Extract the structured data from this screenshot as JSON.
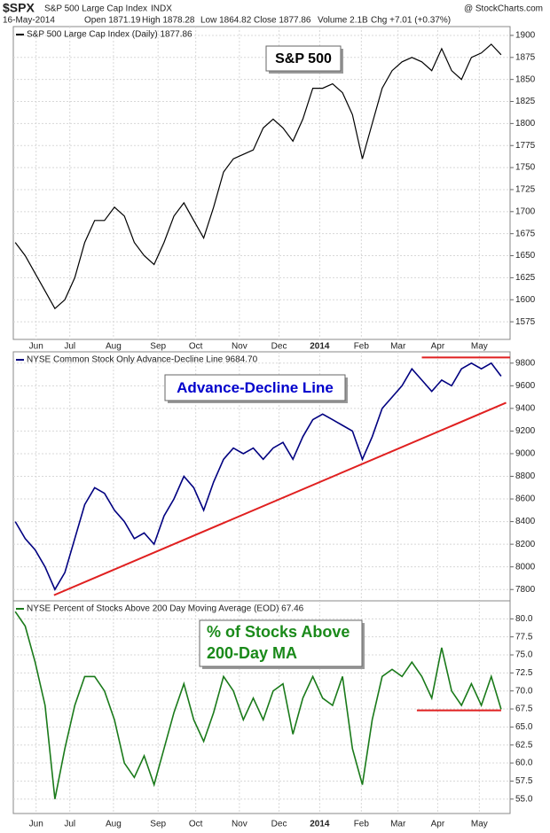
{
  "header": {
    "symbol": "$SPX",
    "name": "S&P 500 Large Cap Index",
    "exchange": "INDX",
    "source": "@ StockCharts.com",
    "date": "16-May-2014",
    "open": "Open 1871.19",
    "high": "High 1878.28",
    "low": "Low 1864.82",
    "close": "Close 1877.86",
    "volume": "Volume 2.1B",
    "change": "Chg +7.01 (+0.37%)"
  },
  "chart_data": [
    {
      "type": "line",
      "title": "S&P 500 Large Cap Index (Daily) 1877.86",
      "annotation": [
        "S&P 500"
      ],
      "color": "#000000",
      "annotation_color": "#000000",
      "values": [
        1665,
        1650,
        1630,
        1610,
        1590,
        1600,
        1625,
        1665,
        1690,
        1690,
        1705,
        1695,
        1665,
        1650,
        1640,
        1665,
        1695,
        1710,
        1690,
        1670,
        1705,
        1745,
        1760,
        1765,
        1770,
        1795,
        1805,
        1795,
        1780,
        1805,
        1840,
        1840,
        1845,
        1835,
        1810,
        1760,
        1800,
        1840,
        1860,
        1870,
        1875,
        1870,
        1860,
        1885,
        1860,
        1850,
        1875,
        1880,
        1890,
        1878
      ],
      "xlim": [
        -0.2,
        49.9
      ],
      "ylim": [
        1555,
        1910
      ],
      "yticks": [
        1575,
        1600,
        1625,
        1650,
        1675,
        1700,
        1725,
        1750,
        1775,
        1800,
        1825,
        1850,
        1875,
        1900
      ],
      "xticks": [
        {
          "value": 2.1,
          "label": "Jun"
        },
        {
          "value": 5.5,
          "label": "Jul"
        },
        {
          "value": 9.9,
          "label": "Aug"
        },
        {
          "value": 14.4,
          "label": "Sep"
        },
        {
          "value": 18.2,
          "label": "Oct"
        },
        {
          "value": 22.6,
          "label": "Nov"
        },
        {
          "value": 26.6,
          "label": "Dec"
        },
        {
          "value": 30.7,
          "label": "2014"
        },
        {
          "value": 34.9,
          "label": "Feb"
        },
        {
          "value": 38.6,
          "label": "Mar"
        },
        {
          "value": 42.6,
          "label": "Apr"
        },
        {
          "value": 46.8,
          "label": "May"
        }
      ],
      "grid": true
    },
    {
      "type": "line",
      "title": "NYSE Common Stock Only Advance-Decline Line 9684.70",
      "annotation": [
        "Advance-Decline Line"
      ],
      "color": "#000080",
      "annotation_color": "#0000cc",
      "values": [
        8400,
        8250,
        8150,
        8000,
        7800,
        7950,
        8250,
        8550,
        8700,
        8650,
        8500,
        8400,
        8250,
        8300,
        8200,
        8450,
        8600,
        8800,
        8700,
        8500,
        8750,
        8950,
        9050,
        9000,
        9050,
        8950,
        9050,
        9100,
        8950,
        9150,
        9300,
        9350,
        9300,
        9250,
        9200,
        8950,
        9150,
        9400,
        9500,
        9600,
        9750,
        9650,
        9550,
        9650,
        9600,
        9750,
        9800,
        9750,
        9800,
        9685
      ],
      "xlim": [
        -0.2,
        49.9
      ],
      "ylim": [
        7700,
        9900
      ],
      "yticks": [
        7800,
        8000,
        8200,
        8400,
        8600,
        8800,
        9000,
        9200,
        9400,
        9600,
        9800
      ],
      "lines": [
        {
          "color": "#e02020",
          "x": [
            3.9,
            49.5
          ],
          "values": [
            7750,
            9450
          ]
        },
        {
          "color": "#e02020",
          "x": [
            41,
            50
          ],
          "values": [
            9850,
            9850
          ]
        }
      ],
      "grid": true
    },
    {
      "type": "line",
      "title": "NYSE Percent of Stocks Above 200 Day Moving Average (EOD) 67.46",
      "annotation": [
        "% of Stocks Above",
        "200-Day MA"
      ],
      "color": "#1a7a1a",
      "annotation_color": "#1a8a1a",
      "values": [
        81,
        79,
        74,
        68,
        55,
        62,
        68,
        72,
        72,
        70,
        66,
        60,
        58,
        61,
        57,
        62,
        67,
        71,
        66,
        63,
        67,
        72,
        70,
        66,
        69,
        66,
        70,
        71,
        64,
        69,
        72,
        69,
        68,
        72,
        62,
        57,
        66,
        72,
        73,
        72,
        74,
        72,
        69,
        76,
        70,
        68,
        71,
        68,
        72,
        67.46
      ],
      "xlim": [
        -0.2,
        49.9
      ],
      "ylim": [
        53,
        82.5
      ],
      "yticks": [
        {
          "value": 55,
          "label": "55.0"
        },
        57.5,
        {
          "value": 60,
          "label": "60.0"
        },
        62.5,
        {
          "value": 65,
          "label": "65.0"
        },
        67.5,
        {
          "value": 70,
          "label": "70.0"
        },
        72.5,
        {
          "value": 75,
          "label": "75.0"
        },
        77.5,
        {
          "value": 80,
          "label": "80.0"
        }
      ],
      "xticks": [
        {
          "value": 2.1,
          "label": "Jun"
        },
        {
          "value": 5.5,
          "label": "Jul"
        },
        {
          "value": 9.9,
          "label": "Aug"
        },
        {
          "value": 14.4,
          "label": "Sep"
        },
        {
          "value": 18.2,
          "label": "Oct"
        },
        {
          "value": 22.6,
          "label": "Nov"
        },
        {
          "value": 26.6,
          "label": "Dec"
        },
        {
          "value": 30.7,
          "label": "2014"
        },
        {
          "value": 34.9,
          "label": "Feb"
        },
        {
          "value": 38.6,
          "label": "Mar"
        },
        {
          "value": 42.6,
          "label": "Apr"
        },
        {
          "value": 46.8,
          "label": "May"
        }
      ],
      "lines": [
        {
          "color": "#e02020",
          "x": [
            40.5,
            49
          ],
          "values": [
            67.3,
            67.3
          ]
        }
      ],
      "grid": true
    }
  ]
}
